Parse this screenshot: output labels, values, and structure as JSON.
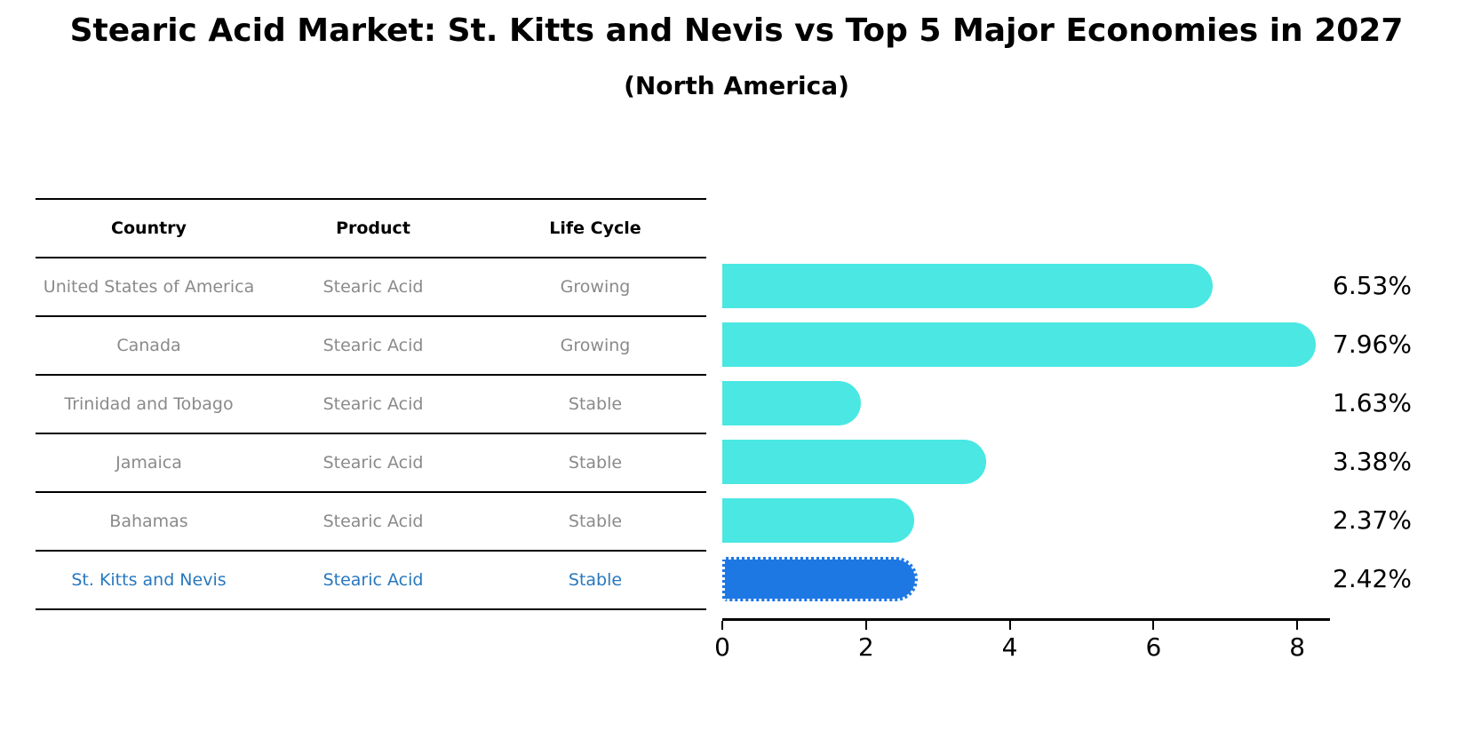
{
  "header": {
    "title": "Stearic Acid Market: St. Kitts and Nevis vs Top 5 Major Economies in 2027",
    "subtitle": "(North America)"
  },
  "table": {
    "columns": [
      "Country",
      "Product",
      "Life Cycle"
    ],
    "rows": [
      {
        "country": "United States of America",
        "product": "Stearic Acid",
        "life_cycle": "Growing",
        "highlighted": false
      },
      {
        "country": "Canada",
        "product": "Stearic Acid",
        "life_cycle": "Growing",
        "highlighted": false
      },
      {
        "country": "Trinidad and Tobago",
        "product": "Stearic Acid",
        "life_cycle": "Stable",
        "highlighted": false
      },
      {
        "country": "Jamaica",
        "product": "Stearic Acid",
        "life_cycle": "Stable",
        "highlighted": false
      },
      {
        "country": "Bahamas",
        "product": "Stearic Acid",
        "life_cycle": "Stable",
        "highlighted": false
      },
      {
        "country": "St. Kitts and Nevis",
        "product": "Stearic Acid",
        "life_cycle": "Stable",
        "highlighted": true
      }
    ]
  },
  "chart_data": {
    "type": "bar",
    "orientation": "horizontal",
    "title": "Stearic Acid Market: St. Kitts and Nevis vs Top 5 Major Economies in 2027",
    "subtitle": "(North America)",
    "categories": [
      "United States of America",
      "Canada",
      "Trinidad and Tobago",
      "Jamaica",
      "Bahamas",
      "St. Kitts and Nevis"
    ],
    "values": [
      6.53,
      7.96,
      1.63,
      3.38,
      2.37,
      2.42
    ],
    "value_labels": [
      "6.53%",
      "7.96%",
      "1.63%",
      "3.38%",
      "2.37%",
      "2.42%"
    ],
    "xlabel": "",
    "ylabel": "",
    "xlim": [
      0,
      8.4
    ],
    "x_ticks": [
      0,
      2,
      4,
      6,
      8
    ],
    "grid": false,
    "legend": false,
    "highlight_index": 5
  },
  "colors": {
    "bar": "#4AE7E3",
    "highlight_bar": "#1E78E3",
    "highlight_text": "#2878be",
    "row_text": "#8a8a8a",
    "axis": "#000000"
  }
}
